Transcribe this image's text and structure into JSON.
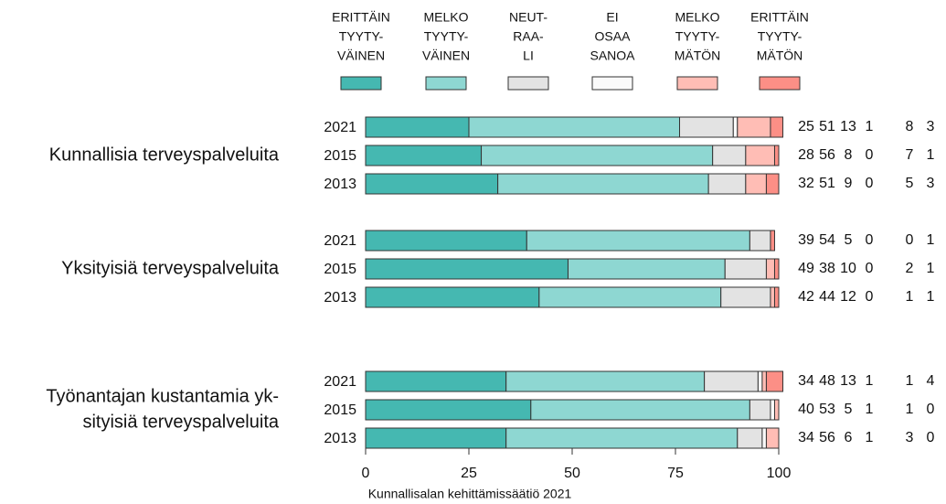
{
  "chart_data": {
    "type": "stacked-bar-horizontal",
    "categories": [
      "2021",
      "2015",
      "2013",
      "2021",
      "2015",
      "2013",
      "2021",
      "2015",
      "2013"
    ],
    "groups": [
      {
        "label": [
          "Kunnallisia terveyspalveluita"
        ]
      },
      {
        "label": [
          "Yksityisiä terveyspalveluita"
        ]
      },
      {
        "label": [
          "Työnantajan kustantamia yk-",
          "sityisiä terveyspalveluita"
        ]
      }
    ],
    "series": [
      {
        "name": [
          "ERITTÄIN",
          "TYYTY-",
          "VÄINEN"
        ],
        "color": "#45b8b1",
        "values": [
          25,
          28,
          32,
          39,
          49,
          42,
          34,
          40,
          34
        ]
      },
      {
        "name": [
          "MELKO",
          "TYYTY-",
          "VÄINEN"
        ],
        "color": "#8ed7d2",
        "values": [
          51,
          56,
          51,
          54,
          38,
          44,
          48,
          53,
          56
        ]
      },
      {
        "name": [
          "NEUT-",
          "RAA-",
          "LI"
        ],
        "color": "#e3e3e3",
        "values": [
          13,
          8,
          9,
          5,
          10,
          12,
          13,
          5,
          6
        ]
      },
      {
        "name": [
          "EI",
          "OSAA",
          "SANOA"
        ],
        "color": "#fafafa",
        "values": [
          1,
          0,
          0,
          0,
          0,
          0,
          1,
          1,
          1
        ]
      },
      {
        "name": [
          "MELKO",
          "TYYTY-",
          "MÄTÖN"
        ],
        "color": "#ffbdb5",
        "values": [
          8,
          7,
          5,
          0,
          2,
          1,
          1,
          1,
          3
        ]
      },
      {
        "name": [
          "ERITTÄIN",
          "TYYTY-",
          "MÄTÖN"
        ],
        "color": "#fc8f86",
        "values": [
          3,
          1,
          3,
          1,
          1,
          1,
          4,
          0,
          0
        ]
      }
    ],
    "xlim": [
      0,
      100
    ],
    "xticks": [
      0,
      25,
      50,
      75,
      100
    ],
    "source": "Kunnallisalan kehittämissäätiö 2021"
  }
}
